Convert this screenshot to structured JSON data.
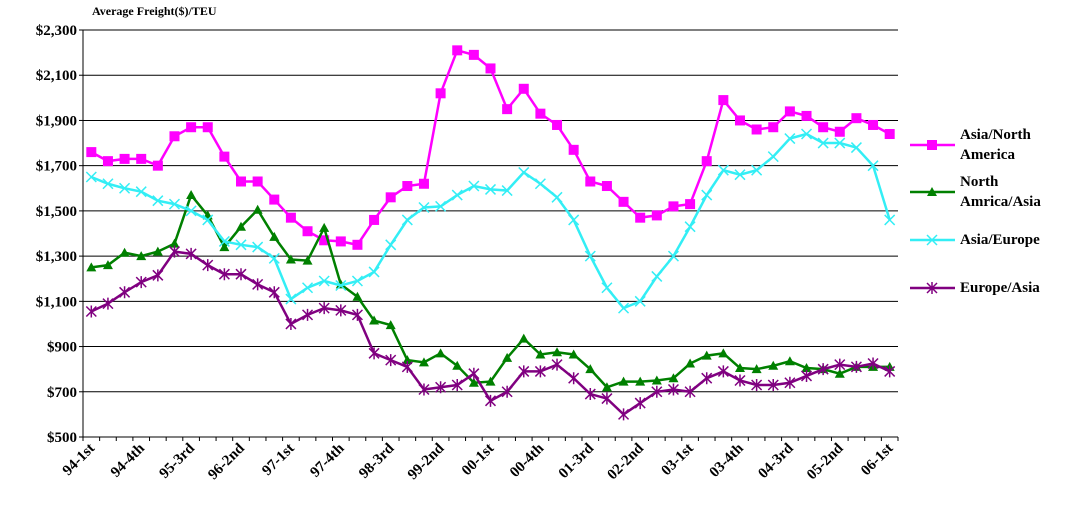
{
  "chart_data": {
    "type": "line",
    "title": "Average Freight($)/TEU",
    "categories": [
      "94-1st",
      null,
      null,
      "94-4th",
      null,
      null,
      "95-3rd",
      null,
      null,
      "96-2nd",
      null,
      null,
      "97-1st",
      null,
      null,
      "97-4th",
      null,
      null,
      "98-3rd",
      null,
      null,
      "99-2nd",
      null,
      null,
      "00-1st",
      null,
      null,
      "00-4th",
      null,
      null,
      "01-3rd",
      null,
      null,
      "02-2nd",
      null,
      null,
      "03-1st",
      null,
      null,
      "03-4th",
      null,
      null,
      "04-3rd",
      null,
      null,
      "05-2nd",
      null,
      null,
      "06-1st"
    ],
    "ylim": [
      500,
      2300
    ],
    "yticks": [
      {
        "value": 500,
        "label": "$500"
      },
      {
        "value": 700,
        "label": "$700"
      },
      {
        "value": 900,
        "label": "$900"
      },
      {
        "value": 1100,
        "label": "$1,100"
      },
      {
        "value": 1300,
        "label": "$1,300"
      },
      {
        "value": 1500,
        "label": "$1,500"
      },
      {
        "value": 1700,
        "label": "$1,700"
      },
      {
        "value": 1900,
        "label": "$1,900"
      },
      {
        "value": 2100,
        "label": "$2,100"
      },
      {
        "value": 2300,
        "label": "$2,300"
      }
    ],
    "grid": true,
    "legend": "right",
    "series": [
      {
        "name": "Asia/North America",
        "color": "#ff00ff",
        "marker": "square",
        "values": [
          1760,
          1720,
          1730,
          1730,
          1700,
          1830,
          1870,
          1870,
          1740,
          1630,
          1630,
          1550,
          1470,
          1410,
          1370,
          1365,
          1350,
          1460,
          1560,
          1610,
          1620,
          2020,
          2210,
          2190,
          2130,
          1950,
          2040,
          1930,
          1880,
          1770,
          1630,
          1610,
          1540,
          1470,
          1480,
          1520,
          1530,
          1720,
          1990,
          1900,
          1860,
          1870,
          1940,
          1920,
          1870,
          1850,
          1910,
          1880,
          1840
        ]
      },
      {
        "name": "North Amrica/Asia",
        "color": "#008000",
        "marker": "triangle",
        "values": [
          1250,
          1260,
          1315,
          1300,
          1320,
          1355,
          1570,
          1480,
          1340,
          1430,
          1505,
          1385,
          1285,
          1280,
          1425,
          1175,
          1120,
          1015,
          995,
          840,
          830,
          870,
          815,
          740,
          745,
          850,
          935,
          865,
          875,
          865,
          800,
          720,
          745,
          745,
          750,
          760,
          825,
          860,
          870,
          805,
          800,
          815,
          835,
          805,
          800,
          780,
          810,
          810,
          810
        ]
      },
      {
        "name": "Asia/Europe",
        "color": "#33eef5",
        "marker": "x",
        "values": [
          1650,
          1620,
          1600,
          1585,
          1545,
          1530,
          1500,
          1460,
          1365,
          1350,
          1340,
          1290,
          1110,
          1160,
          1190,
          1170,
          1190,
          1230,
          1350,
          1460,
          1515,
          1520,
          1570,
          1610,
          1595,
          1590,
          1670,
          1620,
          1560,
          1460,
          1300,
          1160,
          1070,
          1100,
          1210,
          1300,
          1430,
          1570,
          1680,
          1660,
          1680,
          1740,
          1820,
          1840,
          1800,
          1800,
          1780,
          1700,
          1460
        ]
      },
      {
        "name": "Europe/Asia",
        "color": "#800080",
        "marker": "star",
        "values": [
          1055,
          1090,
          1140,
          1185,
          1215,
          1320,
          1310,
          1260,
          1220,
          1220,
          1175,
          1140,
          1000,
          1040,
          1070,
          1060,
          1040,
          870,
          840,
          810,
          710,
          720,
          730,
          780,
          660,
          700,
          790,
          790,
          820,
          760,
          690,
          670,
          600,
          650,
          700,
          710,
          700,
          760,
          790,
          750,
          730,
          730,
          740,
          770,
          800,
          820,
          810,
          825,
          790
        ]
      }
    ]
  }
}
